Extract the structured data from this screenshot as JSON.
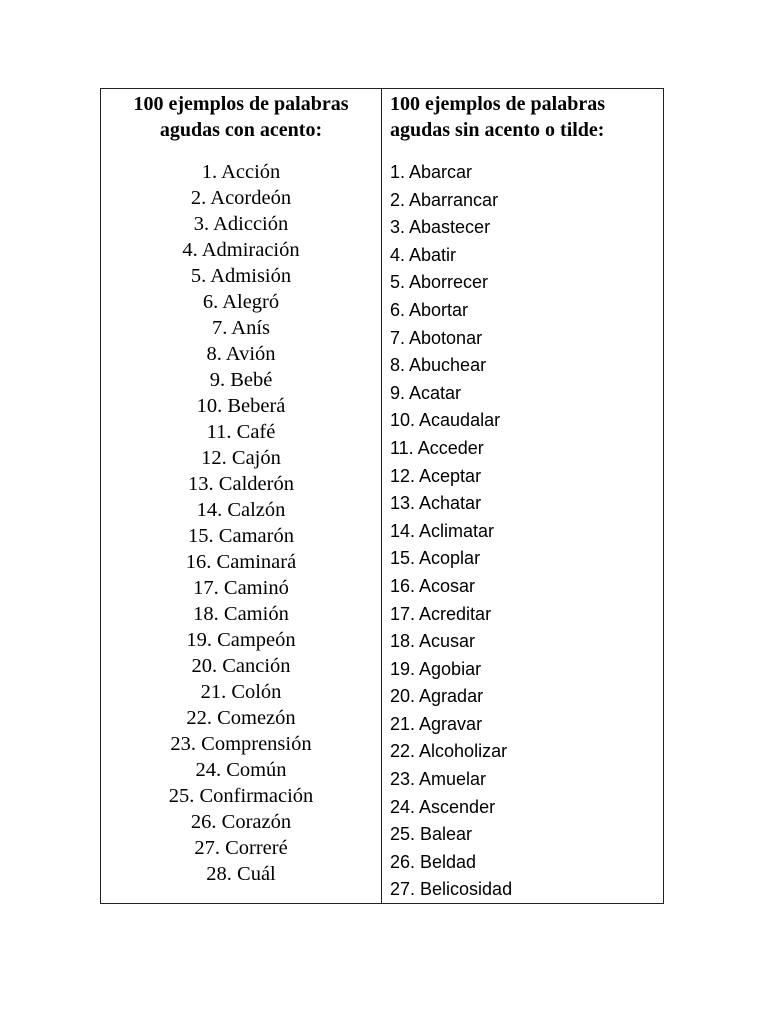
{
  "left_column": {
    "header": [
      "100 ejemplos de palabras",
      "agudas con acento:"
    ],
    "items": [
      "1. Acción",
      "2. Acordeón",
      "3. Adicción",
      "4. Admiración",
      "5. Admisión",
      "6. Alegró",
      "7. Anís",
      "8. Avión",
      "9. Bebé",
      "10. Beberá",
      "11. Café",
      "12. Cajón",
      "13. Calderón",
      "14. Calzón",
      "15. Camarón",
      "16. Caminará",
      "17. Caminó",
      "18. Camión",
      "19. Campeón",
      "20. Canción",
      "21. Colón",
      "22. Comezón",
      "23. Comprensión",
      "24. Común",
      "25. Confirmación",
      "26. Corazón",
      "27. Correré",
      "28. Cuál"
    ]
  },
  "right_column": {
    "header": [
      "100 ejemplos de palabras",
      "agudas sin acento o tilde:"
    ],
    "items": [
      "1. Abarcar",
      "2. Abarrancar",
      "3. Abastecer",
      "4. Abatir",
      "5. Aborrecer",
      "6. Abortar",
      "7. Abotonar",
      "8. Abuchear",
      "9. Acatar",
      "10. Acaudalar",
      "11. Acceder",
      "12. Aceptar",
      "13. Achatar",
      "14. Aclimatar",
      "15. Acoplar",
      "16. Acosar",
      "17. Acreditar",
      "18. Acusar",
      "19. Agobiar",
      "20. Agradar",
      "21. Agravar",
      "22. Alcoholizar",
      "23. Amuelar",
      "24. Ascender",
      "25. Balear",
      "26. Beldad",
      "27. Belicosidad"
    ]
  }
}
